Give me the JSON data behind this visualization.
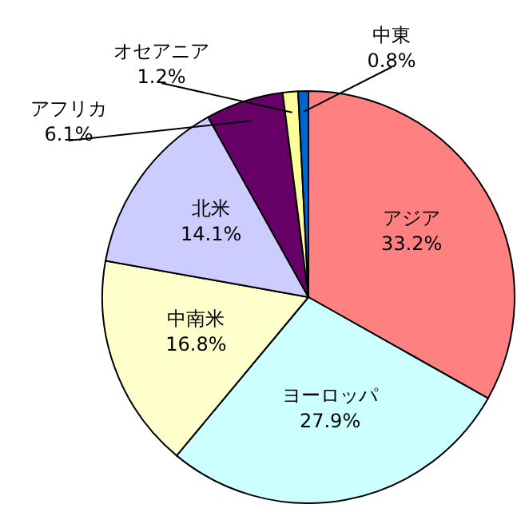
{
  "chart_data": {
    "type": "pie",
    "categories": [
      "アジア",
      "ヨーロッパ",
      "中南米",
      "北米",
      "アフリカ",
      "オセアニア",
      "中東"
    ],
    "values": [
      33.2,
      27.9,
      16.8,
      14.1,
      6.1,
      1.2,
      0.8
    ],
    "colors": [
      "#ff8080",
      "#ccffff",
      "#ffffcc",
      "#ccccff",
      "#660066",
      "#ffff99",
      "#0066cc"
    ],
    "value_labels": [
      "33.2%",
      "27.9%",
      "16.8%",
      "14.1%",
      "6.1%",
      "1.2%",
      "0.8%"
    ]
  }
}
